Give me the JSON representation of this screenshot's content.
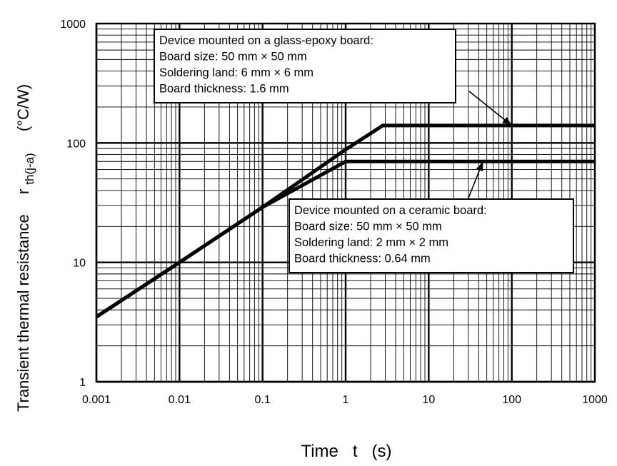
{
  "chart_data": {
    "type": "line",
    "title": "",
    "xlabel": "Time   t   (s)",
    "ylabel": {
      "main": "Transient thermal resistance",
      "symbol": "r",
      "subscript": "th(j-a)",
      "unit": "(°C/W)"
    },
    "x_scale": "log",
    "y_scale": "log",
    "xlim": [
      0.001,
      1000
    ],
    "ylim": [
      1,
      1000
    ],
    "x_tick_labels": [
      "0.001",
      "0.01",
      "0.1",
      "1",
      "10",
      "100",
      "1000"
    ],
    "y_tick_labels": [
      "1",
      "10",
      "100",
      "1000"
    ],
    "grid": true,
    "series": [
      {
        "color": "#000000",
        "x": [
          0.001,
          0.01,
          0.1,
          1,
          2.8,
          1000
        ],
        "y": [
          3.5,
          10,
          29,
          88,
          140,
          140
        ]
      },
      {
        "color": "#000000",
        "x": [
          0.001,
          0.01,
          0.1,
          1,
          1000
        ],
        "y": [
          3.5,
          10,
          29,
          70,
          70
        ]
      }
    ],
    "annotations": [
      {
        "lines": [
          "Device mounted on a glass-epoxy board:",
          "Board size: 50 mm  ×  50 mm",
          "Soldering land: 6 mm  ×  6 mm",
          "Board thickness: 1.6 mm"
        ],
        "points_to": [
          100,
          140
        ]
      },
      {
        "lines": [
          "Device mounted on a ceramic board:",
          "Board size: 50 mm  ×  50 mm",
          "Soldering land: 2 mm  ×  2 mm",
          "Board thickness: 0.64 mm"
        ],
        "points_to": [
          45,
          70
        ]
      }
    ]
  }
}
